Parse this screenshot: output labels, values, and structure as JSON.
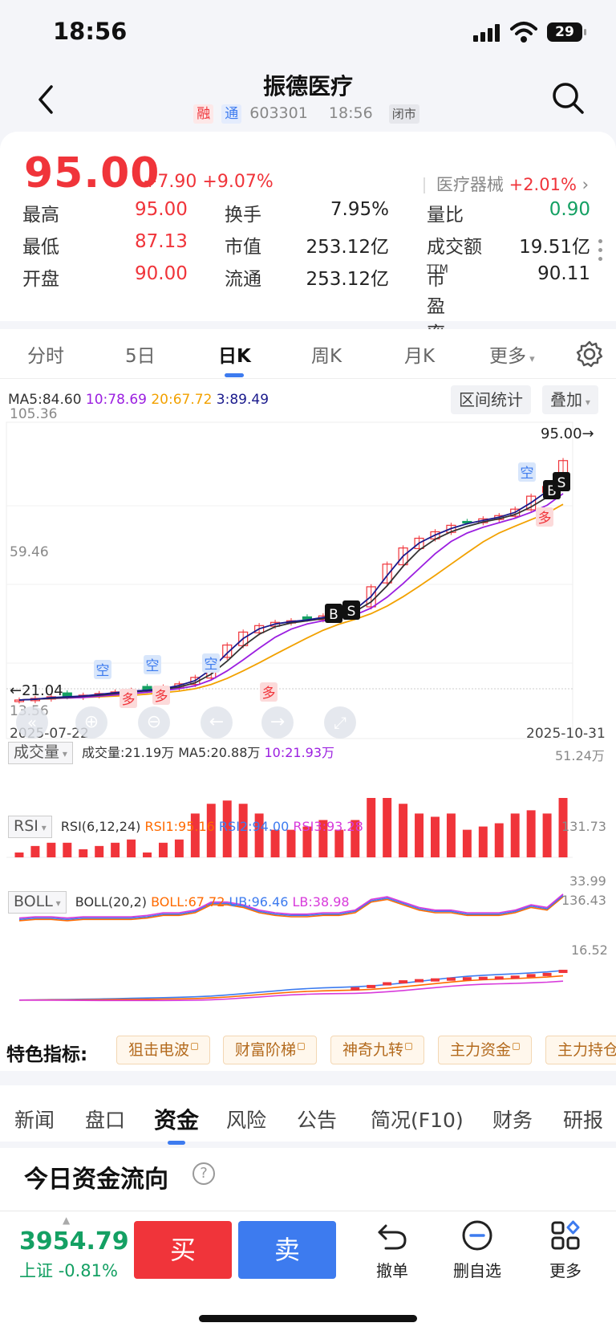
{
  "status": {
    "time": "18:56",
    "battery": "29"
  },
  "header": {
    "name": "振德医疗",
    "tag_margin": "融",
    "tag_connect": "通",
    "code": "603301",
    "time": "18:56",
    "status_tag": "闭市"
  },
  "quote": {
    "price": "95.00",
    "change": "+7.90",
    "change_pct": "+9.07%",
    "sector_name": "医疗器械",
    "sector_pct": "+2.01%",
    "rows": [
      {
        "l1": "最高",
        "v1": "95.00",
        "l2": "换手",
        "v2": "7.95%",
        "l3": "量比",
        "v3": "0.90"
      },
      {
        "l1": "最低",
        "v1": "87.13",
        "l2": "市值",
        "v2": "253.12亿",
        "l3": "成交额",
        "v3": "19.51亿"
      },
      {
        "l1": "开盘",
        "v1": "90.00",
        "l2": "流通",
        "v2": "253.12亿",
        "l3": "市盈率",
        "l3_sup": "TTM",
        "v3": "90.11"
      }
    ]
  },
  "period_tabs": [
    "分时",
    "5日",
    "日K",
    "周K",
    "月K",
    "更多"
  ],
  "chart": {
    "ma_legend": {
      "ma5": "MA5:84.60",
      "ma10": "10:78.69",
      "ma20": "20:67.72",
      "ma3": "3:89.49"
    },
    "btn_range": "区间统计",
    "btn_overlay": "叠加",
    "y_max": "105.36",
    "y_mid": "59.46",
    "y_min": "13.56",
    "last_price_label": "95.00",
    "low_label": "21.04",
    "date_start": "2025-07-22",
    "date_end": "2025-10-31",
    "signal_empty": "空",
    "signal_long": "多",
    "signal_b": "B",
    "signal_s": "S",
    "volume": {
      "box": "成交量",
      "vol": "成交量:21.19万",
      "ma5": "MA5:20.88万",
      "ma10": "10:21.93万",
      "max": "51.24万"
    },
    "rsi": {
      "box": "RSI",
      "params": "RSI(6,12,24)",
      "rsi1": "RSI1:95.16",
      "rsi2": "RSI2:94.00",
      "rsi3": "RSI3:93.28",
      "max": "131.73",
      "min": "33.99"
    },
    "boll": {
      "box": "BOLL",
      "params": "BOLL(20,2)",
      "boll": "BOLL:67.72",
      "ub": "UB:96.46",
      "lb": "LB:38.98",
      "max": "136.43",
      "min": "16.52"
    }
  },
  "chart_data": {
    "type": "candlestick",
    "x_range": [
      "2025-07-22",
      "2025-10-31"
    ],
    "ylim": [
      13.56,
      105.36
    ],
    "approx_close_path": [
      21.0,
      21.5,
      22.0,
      22.0,
      22.5,
      23.0,
      23.5,
      24.0,
      24.0,
      25.0,
      26.0,
      28.0,
      33.0,
      38.0,
      42.0,
      44.0,
      45.0,
      45.5,
      46.0,
      47.0,
      48.0,
      50.0,
      56.0,
      63.0,
      68.0,
      71.0,
      73.0,
      75.0,
      76.0,
      77.0,
      78.0,
      80.0,
      84.0,
      87.0,
      95.0
    ],
    "last_close": 95.0
  },
  "special": {
    "label": "特色指标:",
    "chips": [
      "狙击电波",
      "财富阶梯",
      "神奇九转",
      "主力资金",
      "主力持仓"
    ]
  },
  "info_tabs": [
    "新闻",
    "盘口",
    "资金",
    "风险",
    "公告",
    "简况(F10)",
    "财务",
    "研报"
  ],
  "flow_title": "今日资金流向",
  "bottom": {
    "index_value": "3954.79",
    "index_name": "上证",
    "index_pct": "-0.81%",
    "buy": "买",
    "sell": "卖",
    "cancel": "撤单",
    "remove_fav": "删自选",
    "more": "更多"
  },
  "colors": {
    "up": "#f0343a",
    "down": "#14a063",
    "accent": "#3d7bef",
    "ma5": "#333333",
    "ma10": "#9b1fe0",
    "ma20": "#f2a100",
    "ma3": "#1a1a8c"
  }
}
